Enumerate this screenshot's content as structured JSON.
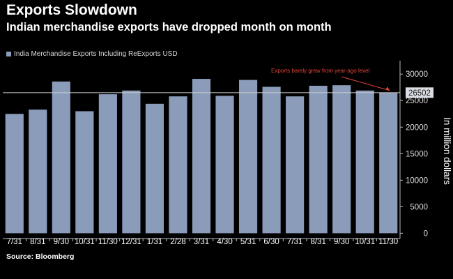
{
  "header": {
    "title": "Exports Slowdown",
    "subtitle": "Indian merchandise exports have dropped month on month"
  },
  "footer": {
    "source": "Source: Bloomberg"
  },
  "colors": {
    "background": "#000000",
    "bar": "#8a9cba",
    "reference_line": "#cfcfcf",
    "annotation": "#e0453a",
    "text": "#ffffff"
  },
  "chart_data": {
    "type": "bar",
    "categories": [
      "7/31",
      "8/31",
      "9/30",
      "10/31",
      "11/30",
      "12/31",
      "1/31",
      "2/28",
      "3/31",
      "4/30",
      "5/31",
      "6/30",
      "7/31",
      "8/31",
      "9/30",
      "10/31",
      "11/30"
    ],
    "x_tick_labels": [
      "7/31",
      "8/31",
      "9/30",
      "10/31",
      "11/30",
      "12/31",
      "1/31",
      "2/28",
      "3/31",
      "4/30",
      "5/31",
      "6/30",
      "7/31",
      "8/31",
      "9/30",
      "10/31",
      "11/30"
    ],
    "series": [
      {
        "name": "India Merchandise Exports Including ReExports USD",
        "values": [
          22500,
          23300,
          28600,
          23000,
          26200,
          26900,
          24400,
          25800,
          29100,
          25900,
          28900,
          27600,
          25800,
          27800,
          27900,
          26900,
          26502
        ]
      }
    ],
    "ylabel": "In million dollars",
    "ylim": [
      -1000,
      32000
    ],
    "yticks": [
      0,
      5000,
      10000,
      15000,
      20000,
      25000,
      30000
    ],
    "y_axis_side": "right",
    "reference_line": {
      "value": 26502,
      "label": "26502"
    },
    "annotation": {
      "text": "Exports barely grew from year-ago level",
      "target_index": 16
    },
    "legend": "top-left",
    "grid": false
  }
}
